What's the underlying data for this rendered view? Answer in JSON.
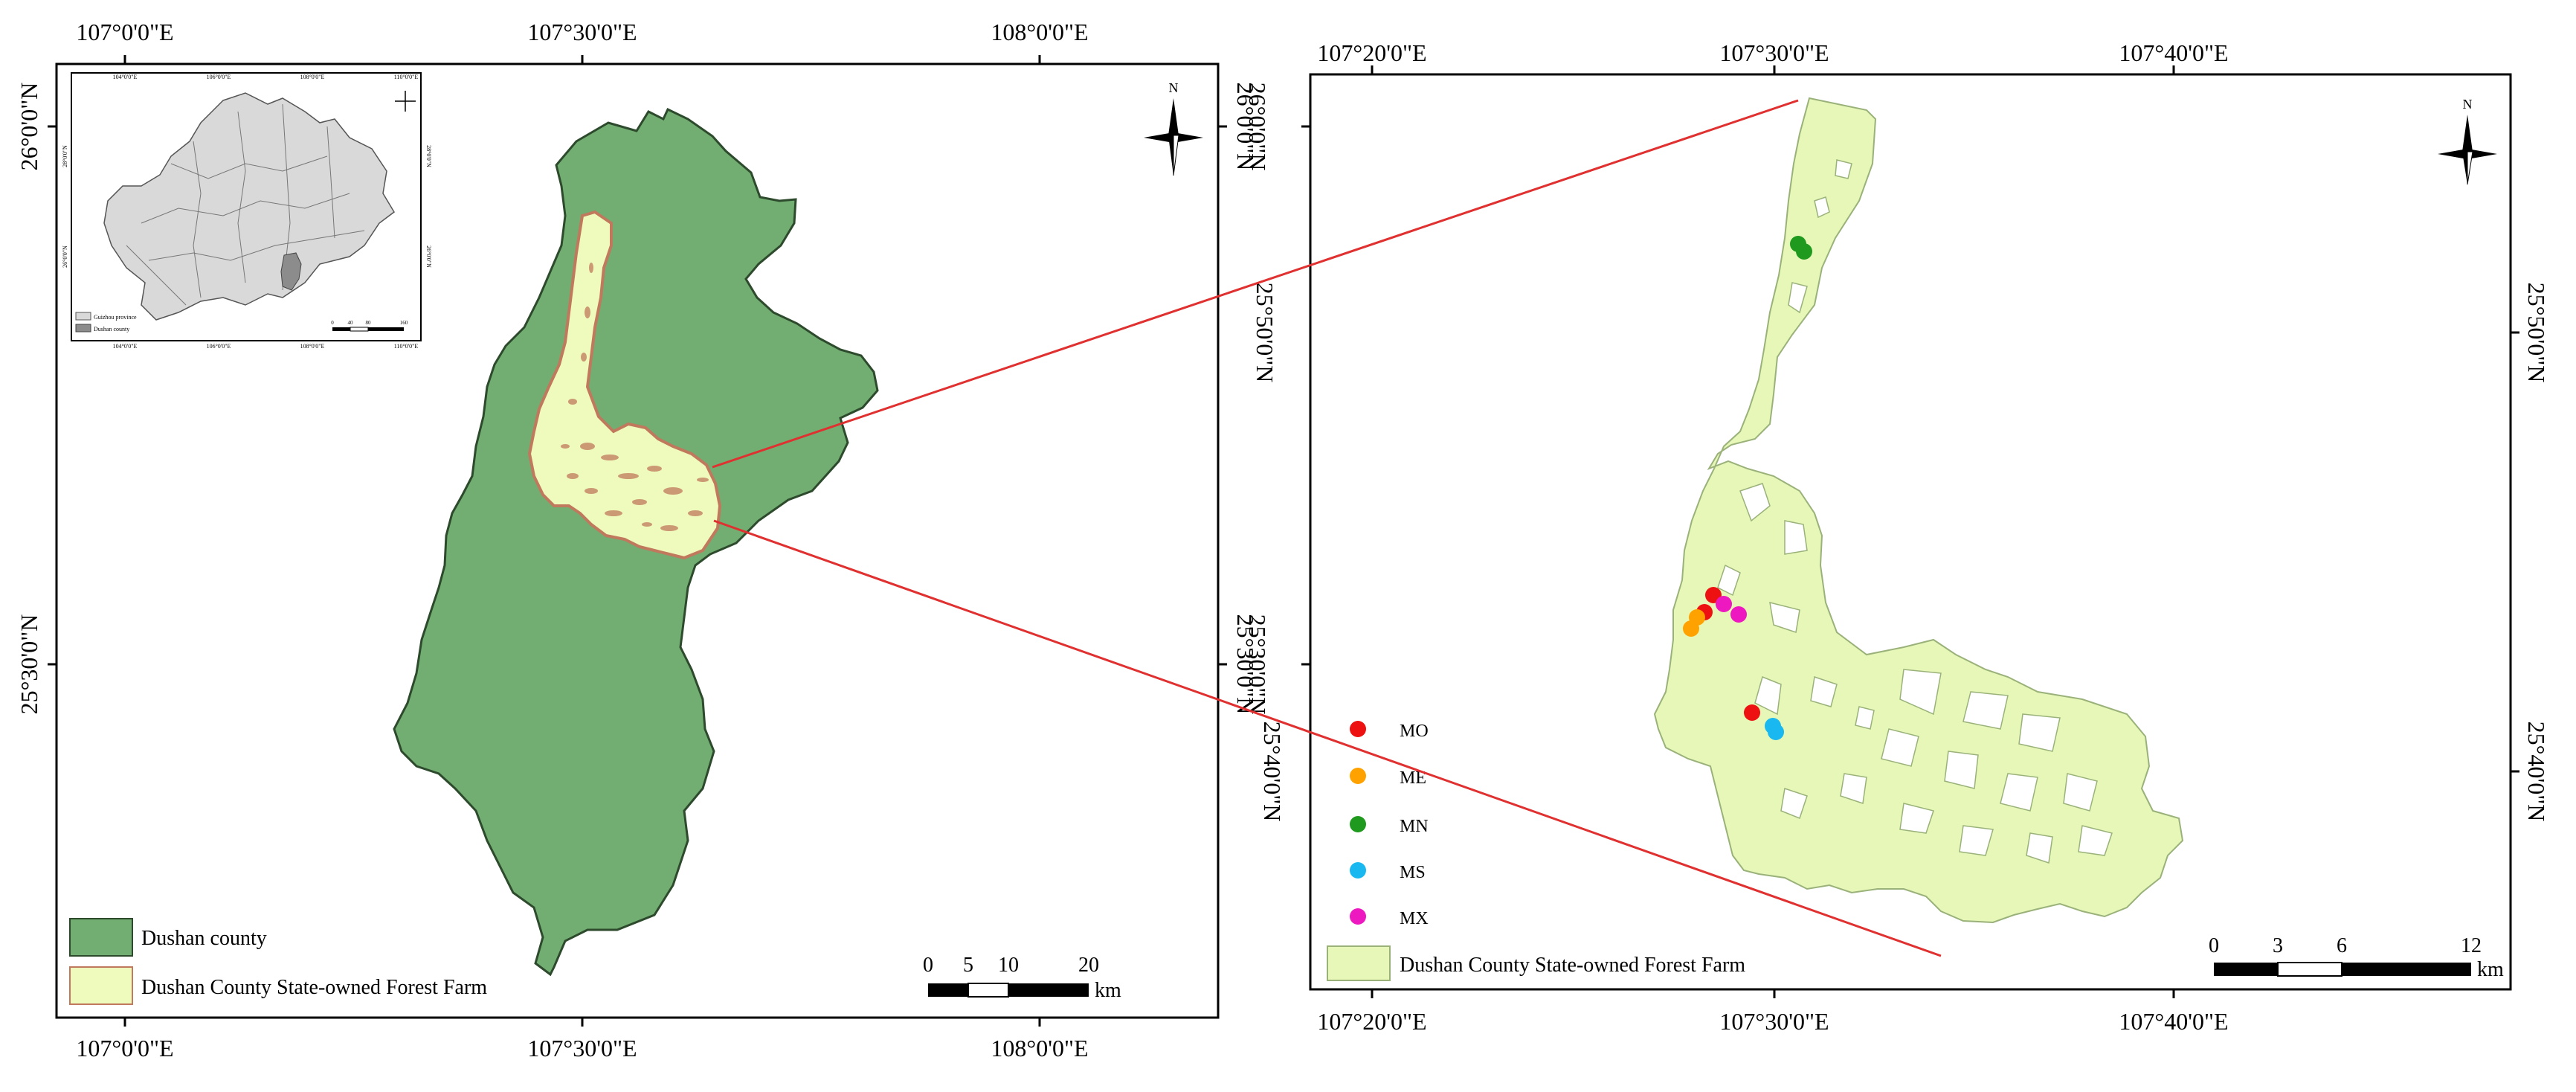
{
  "left_map": {
    "coords_top": [
      "107°0'0\"E",
      "107°30'0\"E",
      "108°0'0\"E"
    ],
    "coords_bottom": [
      "107°0'0\"E",
      "107°30'0\"E",
      "108°0'0\"E"
    ],
    "coords_left": [
      "26°0'0\"N",
      "25°30'0\"N"
    ],
    "coords_right": [
      "26°0'0\"N",
      "25°30'0\"N"
    ],
    "legend": [
      {
        "label": "Dushan county",
        "color": "#72ad72"
      },
      {
        "label": "Dushan County State-owned Forest Farm",
        "color": "#eefbbd"
      }
    ],
    "scalebar": {
      "ticks": [
        "0",
        "5",
        "10",
        "20"
      ],
      "unit": "km"
    },
    "north_label": "N",
    "inset": {
      "coords_top": [
        "104°0'0\"E",
        "106°0'0\"E",
        "108°0'0\"E",
        "110°0'0\"E"
      ],
      "coords_bottom": [
        "104°0'0\"E",
        "106°0'0\"E",
        "108°0'0\"E",
        "110°0'0\"E"
      ],
      "coords_left": [
        "28°0'0\"N",
        "26°0'0\"N"
      ],
      "coords_right": [
        "28°0'0\"N",
        "26°0'0\"N"
      ],
      "legend": [
        "Guizhou province",
        "Dushan county"
      ],
      "scalebar_ticks": [
        "0",
        "40",
        "80",
        "160"
      ]
    }
  },
  "right_map": {
    "coords_top": [
      "107°20'0\"E",
      "107°30'0\"E",
      "107°40'0\"E"
    ],
    "coords_bottom": [
      "107°20'0\"E",
      "107°30'0\"E",
      "107°40'0\"E"
    ],
    "coords_left": [
      "26°0'0\"N",
      "25°50'0\"N",
      "25°30'0\"N"
    ],
    "coords_right": [
      "25°50'0\"N",
      "25°40'0\"N"
    ],
    "coords_middle": [
      "25°40'0\"N"
    ],
    "point_legend": [
      {
        "label": "MO",
        "color": "#ee1111"
      },
      {
        "label": "ME",
        "color": "#ffa200"
      },
      {
        "label": "MN",
        "color": "#1f9a1f"
      },
      {
        "label": "MS",
        "color": "#1ab8f0"
      },
      {
        "label": "MX",
        "color": "#ee18c0"
      }
    ],
    "legend": [
      {
        "label": "Dushan County State-owned Forest Farm",
        "color": "#e6f7b8"
      }
    ],
    "scalebar": {
      "ticks": [
        "0",
        "3",
        "6",
        "12"
      ],
      "unit": "km"
    },
    "north_label": "N"
  },
  "colors": {
    "county_fill": "#72ad72",
    "farm_fill": "#eefbbd",
    "farm_fill_right": "#e6f7b8",
    "farm_outline": "#c0795c",
    "connector": "#e03030",
    "province_fill": "#d9d9d9",
    "highlight_county": "#8c8c8c"
  }
}
